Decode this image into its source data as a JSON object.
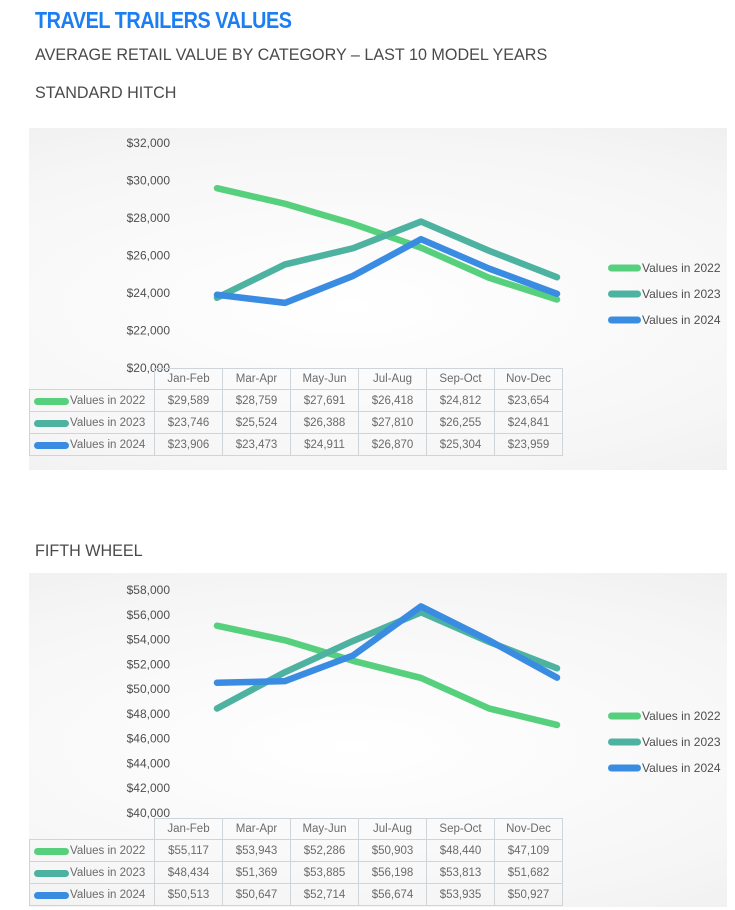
{
  "page": {
    "title": "TRAVEL TRAILERS VALUES",
    "subtitle": "AVERAGE RETAIL VALUE BY CATEGORY – LAST 10 MODEL YEARS"
  },
  "colors": {
    "title_blue": "#1b7ef2",
    "heading_gray": "#4a4a4a",
    "axis_text_gray": "#4f4f4f",
    "table_text_gray": "#6b6b6b",
    "table_border": "#cfd4d8",
    "series_2022": "#57d07e",
    "series_2023": "#4db2a0",
    "series_2024": "#3a8ce2"
  },
  "chart_data": [
    {
      "type": "line",
      "title": "STANDARD HITCH",
      "categories": [
        "Jan-Feb",
        "Mar-Apr",
        "May-Jun",
        "Jul-Aug",
        "Sep-Oct",
        "Nov-Dec"
      ],
      "series": [
        {
          "name": "Values in 2022",
          "color": "#57d07e",
          "values": [
            29589,
            28759,
            27691,
            26418,
            24812,
            23654
          ]
        },
        {
          "name": "Values in 2023",
          "color": "#4db2a0",
          "values": [
            23746,
            25524,
            26388,
            27810,
            26255,
            24841
          ]
        },
        {
          "name": "Values in 2024",
          "color": "#3a8ce2",
          "values": [
            23906,
            23473,
            24911,
            26870,
            25304,
            23959
          ]
        }
      ],
      "table_values_display": [
        [
          "$29,589",
          "$28,759",
          "$27,691",
          "$26,418",
          "$24,812",
          "$23,654"
        ],
        [
          "$23,746",
          "$25,524",
          "$26,388",
          "$27,810",
          "$26,255",
          "$24,841"
        ],
        [
          "$23,906",
          "$23,473",
          "$24,911",
          "$26,870",
          "$25,304",
          "$23,959"
        ]
      ],
      "xlabel": "",
      "ylabel": "",
      "ylim": [
        20000,
        32000
      ],
      "ytick_step": 2000,
      "ytick_labels": [
        "$32,000",
        "$30,000",
        "$28,000",
        "$26,000",
        "$24,000",
        "$22,000",
        "$20,000"
      ],
      "grid": false,
      "legend_position": "right",
      "legend_entries": [
        "Values in 2022",
        "Values in 2023",
        "Values in 2024"
      ],
      "data_table": true
    },
    {
      "type": "line",
      "title": "FIFTH WHEEL",
      "categories": [
        "Jan-Feb",
        "Mar-Apr",
        "May-Jun",
        "Jul-Aug",
        "Sep-Oct",
        "Nov-Dec"
      ],
      "series": [
        {
          "name": "Values in 2022",
          "color": "#57d07e",
          "values": [
            55117,
            53943,
            52286,
            50903,
            48440,
            47109
          ]
        },
        {
          "name": "Values in 2023",
          "color": "#4db2a0",
          "values": [
            48434,
            51369,
            53885,
            56198,
            53813,
            51682
          ]
        },
        {
          "name": "Values in 2024",
          "color": "#3a8ce2",
          "values": [
            50513,
            50647,
            52714,
            56674,
            53935,
            50927
          ]
        }
      ],
      "table_values_display": [
        [
          "$55,117",
          "$53,943",
          "$52,286",
          "$50,903",
          "$48,440",
          "$47,109"
        ],
        [
          "$48,434",
          "$51,369",
          "$53,885",
          "$56,198",
          "$53,813",
          "$51,682"
        ],
        [
          "$50,513",
          "$50,647",
          "$52,714",
          "$56,674",
          "$53,935",
          "$50,927"
        ]
      ],
      "xlabel": "",
      "ylabel": "",
      "ylim": [
        40000,
        58000
      ],
      "ytick_step": 2000,
      "ytick_labels": [
        "$58,000",
        "$56,000",
        "$54,000",
        "$52,000",
        "$50,000",
        "$48,000",
        "$46,000",
        "$44,000",
        "$42,000",
        "$40,000"
      ],
      "grid": false,
      "legend_position": "right",
      "legend_entries": [
        "Values in 2022",
        "Values in 2023",
        "Values in 2024"
      ],
      "data_table": true
    }
  ]
}
